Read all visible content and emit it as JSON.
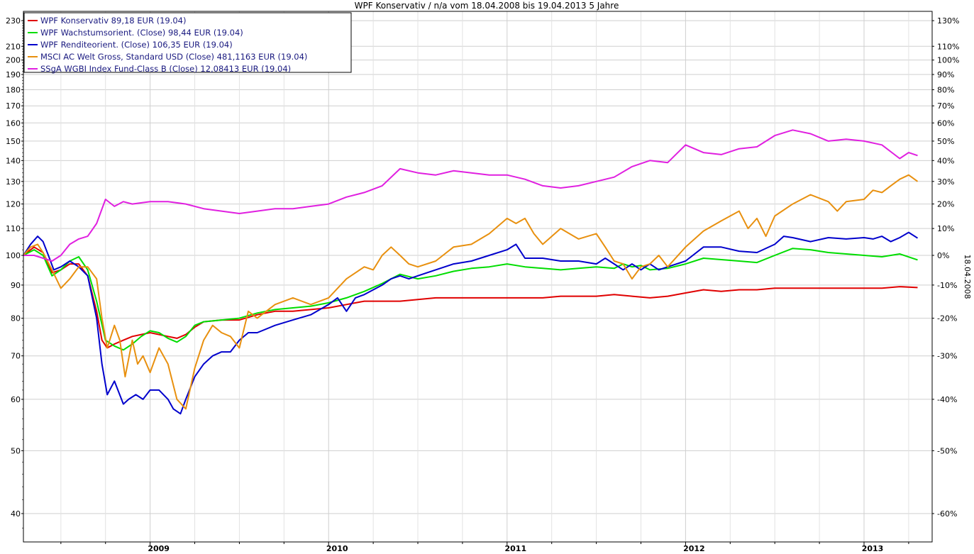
{
  "chart_data": {
    "type": "line",
    "title": "WPF Konservativ / n/a vom 18.04.2008 bis 19.04.2013 5 Jahre",
    "right_axis_label": "18.04.2008",
    "y_scale": "log",
    "ylim": [
      35,
      235
    ],
    "x_range": [
      2008.29,
      2013.3
    ],
    "y_ticks": [
      40,
      50,
      60,
      70,
      80,
      90,
      100,
      110,
      120,
      130,
      140,
      150,
      160,
      170,
      180,
      190,
      200,
      210,
      230
    ],
    "y_tick_labels": [
      "40",
      "50",
      "60",
      "70",
      "80",
      "90",
      "100",
      "110",
      "120",
      "130",
      "140",
      "150",
      "160",
      "170",
      "180",
      "190",
      "200",
      "210",
      "230"
    ],
    "right_ticks": [
      -60,
      -50,
      -40,
      -30,
      -20,
      -10,
      0,
      10,
      20,
      30,
      40,
      50,
      60,
      70,
      80,
      90,
      100,
      110,
      130
    ],
    "right_tick_labels": [
      "-60%",
      "-50%",
      "-40%",
      "-30%",
      "-20%",
      "-10%",
      "0%",
      "10%",
      "20%",
      "30%",
      "40%",
      "50%",
      "60%",
      "70%",
      "80%",
      "90%",
      "100%",
      "110%",
      "130%"
    ],
    "x_ticks": [
      2009,
      2010,
      2011,
      2012,
      2013
    ],
    "x_tick_labels": [
      "2009",
      "2010",
      "2011",
      "2012",
      "2013"
    ],
    "grid": true,
    "legend_position": "top-left",
    "series": [
      {
        "name": "WPF Konservativ 89,18 EUR (19.04)",
        "color": "#e00000",
        "x": [
          2008.29,
          2008.35,
          2008.4,
          2008.45,
          2008.5,
          2008.55,
          2008.6,
          2008.65,
          2008.7,
          2008.73,
          2008.76,
          2008.8,
          2008.85,
          2008.9,
          2008.95,
          2009.0,
          2009.05,
          2009.1,
          2009.15,
          2009.2,
          2009.25,
          2009.3,
          2009.4,
          2009.5,
          2009.6,
          2009.7,
          2009.8,
          2009.9,
          2010.0,
          2010.1,
          2010.2,
          2010.3,
          2010.4,
          2010.5,
          2010.6,
          2010.7,
          2010.8,
          2010.9,
          2011.0,
          2011.1,
          2011.2,
          2011.3,
          2011.4,
          2011.5,
          2011.6,
          2011.7,
          2011.8,
          2011.9,
          2012.0,
          2012.1,
          2012.2,
          2012.3,
          2012.4,
          2012.5,
          2012.6,
          2012.7,
          2012.8,
          2012.9,
          2013.0,
          2013.1,
          2013.2,
          2013.3
        ],
        "values": [
          100,
          103,
          101,
          94,
          95,
          97,
          97,
          93,
          82,
          74,
          72,
          73,
          74,
          75,
          75.5,
          76,
          75.5,
          75,
          74.5,
          75.5,
          77.5,
          79,
          79.5,
          79.5,
          81,
          82,
          82,
          82.5,
          83,
          84,
          85,
          85,
          85,
          85.5,
          86,
          86,
          86,
          86,
          86,
          86,
          86,
          86.5,
          86.5,
          86.5,
          87,
          86.5,
          86,
          86.5,
          87.5,
          88.5,
          88,
          88.5,
          88.5,
          89,
          89,
          89,
          89,
          89,
          89,
          89,
          89.5,
          89.2
        ]
      },
      {
        "name": "WPF Wachstumsorient. (Close) 98,44 EUR (19.04)",
        "color": "#00dd00",
        "x": [
          2008.29,
          2008.35,
          2008.4,
          2008.45,
          2008.5,
          2008.55,
          2008.6,
          2008.65,
          2008.7,
          2008.75,
          2008.8,
          2008.85,
          2008.9,
          2008.95,
          2009.0,
          2009.05,
          2009.1,
          2009.15,
          2009.2,
          2009.25,
          2009.3,
          2009.4,
          2009.5,
          2009.6,
          2009.7,
          2009.8,
          2009.9,
          2010.0,
          2010.1,
          2010.2,
          2010.3,
          2010.4,
          2010.5,
          2010.6,
          2010.7,
          2010.8,
          2010.9,
          2011.0,
          2011.1,
          2011.2,
          2011.3,
          2011.4,
          2011.5,
          2011.6,
          2011.65,
          2011.7,
          2011.75,
          2011.8,
          2011.9,
          2012.0,
          2012.1,
          2012.2,
          2012.3,
          2012.4,
          2012.5,
          2012.6,
          2012.7,
          2012.8,
          2012.9,
          2013.0,
          2013.1,
          2013.2,
          2013.3
        ],
        "values": [
          100,
          102,
          100,
          93,
          95,
          98,
          99.5,
          95,
          85,
          74,
          72.5,
          71.5,
          73,
          75,
          76.5,
          76,
          74.5,
          73.5,
          75,
          78,
          79,
          79.5,
          80,
          81.5,
          82.5,
          83,
          83.5,
          84.5,
          86,
          88,
          90.5,
          93.5,
          92,
          93,
          94.5,
          95.5,
          96,
          97,
          96,
          95.5,
          95,
          95.5,
          96,
          95.5,
          97,
          96,
          96.5,
          95,
          95.5,
          97,
          99,
          98.5,
          98,
          97.5,
          100,
          102.5,
          102,
          101,
          100.5,
          100,
          99.5,
          100.5,
          98.4
        ]
      },
      {
        "name": "WPF Renditeorient. (Close) 106,35 EUR (19.04)",
        "color": "#0000cc",
        "x": [
          2008.29,
          2008.33,
          2008.37,
          2008.4,
          2008.43,
          2008.46,
          2008.5,
          2008.55,
          2008.6,
          2008.65,
          2008.7,
          2008.73,
          2008.76,
          2008.8,
          2008.85,
          2008.88,
          2008.92,
          2008.96,
          2009.0,
          2009.05,
          2009.1,
          2009.13,
          2009.17,
          2009.2,
          2009.25,
          2009.3,
          2009.35,
          2009.4,
          2009.45,
          2009.5,
          2009.55,
          2009.6,
          2009.7,
          2009.8,
          2009.9,
          2010.0,
          2010.05,
          2010.1,
          2010.15,
          2010.2,
          2010.3,
          2010.35,
          2010.4,
          2010.45,
          2010.5,
          2010.6,
          2010.7,
          2010.8,
          2010.9,
          2011.0,
          2011.05,
          2011.1,
          2011.2,
          2011.3,
          2011.4,
          2011.5,
          2011.55,
          2011.6,
          2011.65,
          2011.7,
          2011.75,
          2011.8,
          2011.85,
          2011.9,
          2012.0,
          2012.1,
          2012.2,
          2012.3,
          2012.4,
          2012.5,
          2012.55,
          2012.6,
          2012.7,
          2012.8,
          2012.9,
          2013.0,
          2013.05,
          2013.1,
          2013.15,
          2013.2,
          2013.25,
          2013.3
        ],
        "values": [
          100,
          104,
          107,
          105,
          100,
          95,
          96,
          98,
          96,
          93,
          80,
          68,
          61,
          64,
          59,
          60,
          61,
          60,
          62,
          62,
          60,
          58,
          57,
          60,
          65,
          68,
          70,
          71,
          71,
          74,
          76,
          76,
          78,
          79.5,
          81,
          84,
          86,
          82,
          86,
          87,
          90,
          92,
          93,
          92,
          93,
          95,
          97,
          98,
          100,
          102,
          104,
          99,
          99,
          98,
          98,
          97,
          99,
          97,
          95,
          97,
          95,
          97,
          95,
          96,
          98,
          103,
          103,
          101.5,
          101,
          104,
          107,
          106.5,
          105,
          106.5,
          106,
          106.5,
          106,
          107,
          105,
          106.5,
          108.5,
          106.3
        ]
      },
      {
        "name": "MSCI AC Welt Gross, Standard USD (Close) 481,1163 EUR (19.04)",
        "color": "#e8900f",
        "x": [
          2008.29,
          2008.33,
          2008.37,
          2008.4,
          2008.45,
          2008.5,
          2008.55,
          2008.6,
          2008.65,
          2008.7,
          2008.73,
          2008.76,
          2008.8,
          2008.83,
          2008.86,
          2008.9,
          2008.93,
          2008.96,
          2009.0,
          2009.05,
          2009.1,
          2009.15,
          2009.2,
          2009.25,
          2009.3,
          2009.35,
          2009.4,
          2009.45,
          2009.5,
          2009.55,
          2009.6,
          2009.7,
          2009.8,
          2009.9,
          2010.0,
          2010.1,
          2010.2,
          2010.25,
          2010.3,
          2010.35,
          2010.4,
          2010.45,
          2010.5,
          2010.6,
          2010.7,
          2010.8,
          2010.9,
          2011.0,
          2011.05,
          2011.1,
          2011.15,
          2011.2,
          2011.3,
          2011.4,
          2011.5,
          2011.55,
          2011.6,
          2011.65,
          2011.7,
          2011.75,
          2011.8,
          2011.85,
          2011.9,
          2012.0,
          2012.1,
          2012.2,
          2012.3,
          2012.35,
          2012.4,
          2012.45,
          2012.5,
          2012.6,
          2012.7,
          2012.8,
          2012.85,
          2012.9,
          2013.0,
          2013.05,
          2013.1,
          2013.15,
          2013.2,
          2013.25,
          2013.3
        ],
        "values": [
          100,
          103,
          104,
          101,
          95,
          89,
          92,
          96,
          96,
          92,
          80,
          72,
          78,
          74,
          65,
          74,
          68,
          70,
          66,
          72,
          68,
          60,
          58,
          67,
          74,
          78,
          76,
          75,
          72,
          82,
          80,
          84,
          86,
          84,
          86,
          92,
          96,
          95,
          100,
          103,
          100,
          97,
          96,
          98,
          103,
          104,
          108,
          114,
          112,
          114,
          108,
          104,
          110,
          106,
          108,
          103,
          98,
          97,
          92,
          96,
          97,
          100,
          96,
          103,
          109,
          113,
          117,
          110,
          114,
          107,
          115,
          120,
          124,
          121,
          117,
          121,
          122,
          126,
          125,
          128,
          131,
          133,
          130
        ]
      },
      {
        "name": "SSgA WGBI Index Fund-Class B (Close) 12,08413 EUR (19.04)",
        "color": "#e020e0",
        "x": [
          2008.29,
          2008.35,
          2008.4,
          2008.45,
          2008.5,
          2008.55,
          2008.6,
          2008.65,
          2008.7,
          2008.75,
          2008.8,
          2008.85,
          2008.9,
          2009.0,
          2009.1,
          2009.2,
          2009.3,
          2009.4,
          2009.5,
          2009.6,
          2009.7,
          2009.8,
          2009.9,
          2010.0,
          2010.1,
          2010.2,
          2010.3,
          2010.4,
          2010.5,
          2010.6,
          2010.7,
          2010.8,
          2010.9,
          2011.0,
          2011.1,
          2011.2,
          2011.3,
          2011.4,
          2011.5,
          2011.6,
          2011.7,
          2011.8,
          2011.9,
          2012.0,
          2012.1,
          2012.2,
          2012.3,
          2012.4,
          2012.5,
          2012.6,
          2012.7,
          2012.8,
          2012.9,
          2013.0,
          2013.1,
          2013.2,
          2013.25,
          2013.3
        ],
        "values": [
          100,
          100,
          99,
          98,
          100,
          104,
          106,
          107,
          112,
          122,
          119,
          121,
          120,
          121,
          121,
          120,
          118,
          117,
          116,
          117,
          118,
          118,
          119,
          120,
          123,
          125,
          128,
          136,
          134,
          133,
          135,
          134,
          133,
          133,
          131,
          128,
          127,
          128,
          130,
          132,
          137,
          140,
          139,
          148,
          144,
          143,
          146,
          147,
          153,
          156,
          154,
          150,
          151,
          150,
          148,
          141,
          144,
          142.5
        ]
      }
    ]
  }
}
